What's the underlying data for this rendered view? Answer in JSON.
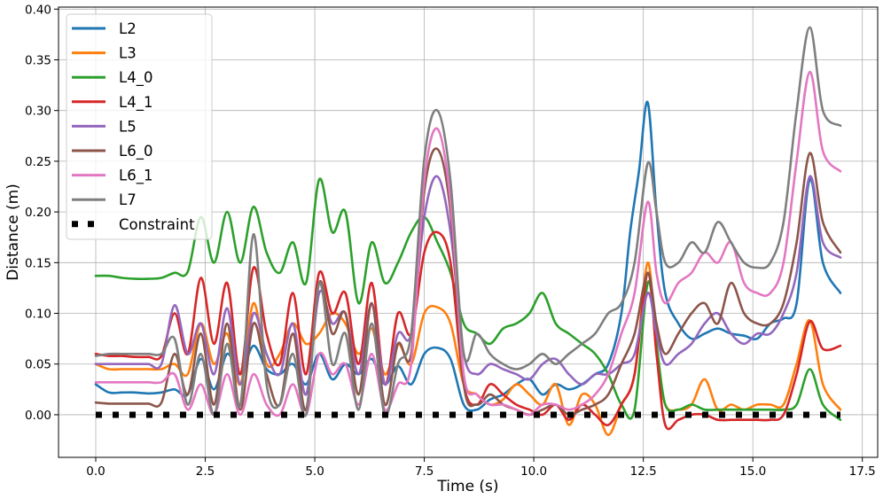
{
  "chart_data": {
    "type": "line",
    "title": "",
    "xlabel": "Time (s)",
    "ylabel": "Distance (m)",
    "xlim": [
      -0.85,
      17.85
    ],
    "ylim": [
      -0.042,
      0.402
    ],
    "xticks": [
      0.0,
      2.5,
      5.0,
      7.5,
      10.0,
      12.5,
      15.0,
      17.5
    ],
    "xtick_labels": [
      "0.0",
      "2.5",
      "5.0",
      "7.5",
      "10.0",
      "12.5",
      "15.0",
      "17.5"
    ],
    "yticks": [
      0.0,
      0.05,
      0.1,
      0.15,
      0.2,
      0.25,
      0.3,
      0.35,
      0.4
    ],
    "ytick_labels": [
      "0.00",
      "0.05",
      "0.10",
      "0.15",
      "0.20",
      "0.25",
      "0.30",
      "0.35",
      "0.40"
    ],
    "grid": true,
    "legend_position": "top-left",
    "series": [
      {
        "name": "L2",
        "color": "#1f77b4",
        "x": [
          0,
          0.3,
          0.6,
          0.9,
          1.2,
          1.5,
          1.8,
          2.1,
          2.4,
          2.7,
          3.0,
          3.3,
          3.6,
          3.9,
          4.2,
          4.5,
          4.8,
          5.1,
          5.4,
          5.7,
          6.0,
          6.3,
          6.6,
          6.9,
          7.2,
          7.5,
          7.8,
          8.1,
          8.4,
          8.7,
          9.0,
          9.3,
          9.6,
          9.9,
          10.2,
          10.5,
          10.8,
          11.1,
          11.4,
          11.7,
          12.0,
          12.2,
          12.4,
          12.6,
          12.8,
          13.0,
          13.3,
          13.6,
          13.9,
          14.2,
          14.5,
          14.8,
          15.1,
          15.4,
          15.7,
          16.0,
          16.3,
          16.6,
          17.0
        ],
        "y": [
          0.03,
          0.022,
          0.022,
          0.022,
          0.021,
          0.022,
          0.025,
          0.02,
          0.055,
          0.025,
          0.06,
          0.04,
          0.068,
          0.045,
          0.04,
          0.05,
          0.03,
          0.06,
          0.035,
          0.05,
          0.04,
          0.055,
          0.03,
          0.048,
          0.03,
          0.06,
          0.066,
          0.055,
          0.01,
          0.005,
          0.015,
          0.02,
          0.03,
          0.035,
          0.02,
          0.03,
          0.025,
          0.03,
          0.04,
          0.05,
          0.1,
          0.18,
          0.24,
          0.308,
          0.2,
          0.12,
          0.09,
          0.075,
          0.08,
          0.085,
          0.08,
          0.078,
          0.075,
          0.09,
          0.095,
          0.11,
          0.232,
          0.15,
          0.12
        ]
      },
      {
        "name": "L3",
        "color": "#ff7f0e",
        "x": [
          0,
          0.3,
          0.6,
          0.9,
          1.2,
          1.5,
          1.8,
          2.1,
          2.4,
          2.7,
          3.0,
          3.3,
          3.6,
          3.9,
          4.2,
          4.5,
          4.8,
          5.1,
          5.4,
          5.7,
          6.0,
          6.3,
          6.6,
          6.9,
          7.2,
          7.5,
          7.8,
          8.1,
          8.4,
          8.7,
          9.0,
          9.3,
          9.6,
          9.9,
          10.2,
          10.5,
          10.8,
          11.1,
          11.4,
          11.7,
          12.0,
          12.3,
          12.6,
          12.8,
          13.0,
          13.3,
          13.6,
          13.9,
          14.2,
          14.5,
          14.8,
          15.1,
          15.4,
          15.7,
          16.0,
          16.3,
          16.6,
          17.0
        ],
        "y": [
          0.05,
          0.045,
          0.045,
          0.045,
          0.045,
          0.045,
          0.05,
          0.04,
          0.09,
          0.05,
          0.08,
          0.03,
          0.11,
          0.05,
          0.06,
          0.09,
          0.07,
          0.08,
          0.1,
          0.09,
          0.06,
          0.085,
          0.04,
          0.07,
          0.05,
          0.1,
          0.106,
          0.09,
          0.03,
          0.02,
          0.01,
          0.015,
          0.03,
          0.02,
          0.01,
          0.03,
          -0.01,
          0.02,
          0.01,
          -0.02,
          0.01,
          0.04,
          0.15,
          0.06,
          0.01,
          0.005,
          0.01,
          0.035,
          0.005,
          0.01,
          0.005,
          0.01,
          0.01,
          0.01,
          0.05,
          0.093,
          0.03,
          0.005
        ]
      },
      {
        "name": "L4_0",
        "color": "#2ca02c",
        "x": [
          0,
          0.3,
          0.6,
          0.9,
          1.2,
          1.5,
          1.8,
          2.1,
          2.4,
          2.7,
          3.0,
          3.3,
          3.6,
          3.9,
          4.2,
          4.5,
          4.8,
          5.1,
          5.4,
          5.7,
          6.0,
          6.3,
          6.6,
          6.9,
          7.2,
          7.5,
          7.8,
          8.1,
          8.4,
          8.7,
          9.0,
          9.3,
          9.6,
          9.9,
          10.2,
          10.5,
          10.8,
          11.1,
          11.4,
          11.7,
          12.0,
          12.3,
          12.6,
          12.8,
          13.0,
          13.3,
          13.6,
          13.9,
          14.2,
          14.5,
          14.8,
          15.1,
          15.4,
          15.7,
          16.0,
          16.3,
          16.6,
          17.0
        ],
        "y": [
          0.137,
          0.137,
          0.135,
          0.134,
          0.134,
          0.135,
          0.14,
          0.141,
          0.195,
          0.15,
          0.2,
          0.15,
          0.205,
          0.16,
          0.14,
          0.17,
          0.13,
          0.232,
          0.18,
          0.2,
          0.11,
          0.17,
          0.13,
          0.15,
          0.18,
          0.195,
          0.17,
          0.14,
          0.09,
          0.08,
          0.07,
          0.085,
          0.09,
          0.1,
          0.12,
          0.09,
          0.08,
          0.07,
          0.06,
          0.04,
          0.01,
          0.005,
          0.13,
          0.07,
          0.01,
          0.005,
          0.01,
          0.005,
          0.005,
          0.005,
          0.005,
          0.005,
          0.005,
          0.005,
          0.01,
          0.045,
          0.01,
          -0.005
        ]
      },
      {
        "name": "L4_1",
        "color": "#d62728",
        "x": [
          0,
          0.3,
          0.6,
          0.9,
          1.2,
          1.5,
          1.8,
          2.1,
          2.4,
          2.7,
          3.0,
          3.3,
          3.6,
          3.9,
          4.2,
          4.5,
          4.8,
          5.1,
          5.4,
          5.7,
          6.0,
          6.3,
          6.6,
          6.9,
          7.2,
          7.5,
          7.8,
          8.1,
          8.4,
          8.7,
          9.0,
          9.3,
          9.6,
          9.9,
          10.2,
          10.5,
          10.8,
          11.1,
          11.4,
          11.7,
          12.0,
          12.3,
          12.6,
          12.8,
          13.0,
          13.3,
          13.6,
          13.9,
          14.2,
          14.5,
          14.8,
          15.1,
          15.4,
          15.7,
          16.0,
          16.3,
          16.6,
          17.0
        ],
        "y": [
          0.06,
          0.058,
          0.058,
          0.057,
          0.057,
          0.058,
          0.1,
          0.06,
          0.135,
          0.07,
          0.13,
          0.04,
          0.145,
          0.08,
          0.05,
          0.12,
          0.04,
          0.14,
          0.1,
          0.12,
          0.05,
          0.13,
          0.03,
          0.1,
          0.08,
          0.16,
          0.18,
          0.15,
          0.03,
          0.01,
          0.03,
          0.02,
          0.01,
          0.005,
          0.0,
          0.01,
          -0.005,
          0.01,
          0.0,
          -0.01,
          0.01,
          0.04,
          0.14,
          0.06,
          -0.01,
          -0.005,
          0.0,
          0.0,
          -0.005,
          -0.005,
          -0.005,
          -0.005,
          -0.005,
          0.0,
          0.04,
          0.092,
          0.065,
          0.068
        ]
      },
      {
        "name": "L5",
        "color": "#9467bd",
        "x": [
          0,
          0.3,
          0.6,
          0.9,
          1.2,
          1.5,
          1.8,
          2.1,
          2.4,
          2.7,
          3.0,
          3.3,
          3.6,
          3.9,
          4.2,
          4.5,
          4.8,
          5.1,
          5.4,
          5.7,
          6.0,
          6.3,
          6.6,
          6.9,
          7.2,
          7.5,
          7.8,
          8.1,
          8.4,
          8.7,
          9.0,
          9.3,
          9.6,
          9.9,
          10.2,
          10.5,
          10.8,
          11.1,
          11.4,
          11.7,
          12.0,
          12.3,
          12.6,
          12.8,
          13.0,
          13.3,
          13.6,
          13.9,
          14.2,
          14.5,
          14.8,
          15.1,
          15.4,
          15.7,
          16.0,
          16.3,
          16.6,
          17.0
        ],
        "y": [
          0.05,
          0.05,
          0.05,
          0.05,
          0.05,
          0.05,
          0.108,
          0.06,
          0.09,
          0.04,
          0.105,
          0.03,
          0.1,
          0.06,
          0.04,
          0.09,
          0.02,
          0.12,
          0.09,
          0.1,
          0.04,
          0.11,
          0.03,
          0.08,
          0.08,
          0.195,
          0.235,
          0.18,
          0.06,
          0.04,
          0.05,
          0.045,
          0.04,
          0.035,
          0.05,
          0.055,
          0.04,
          0.03,
          0.04,
          0.04,
          0.05,
          0.06,
          0.12,
          0.08,
          0.05,
          0.06,
          0.07,
          0.09,
          0.1,
          0.08,
          0.07,
          0.08,
          0.08,
          0.1,
          0.14,
          0.235,
          0.17,
          0.155
        ]
      },
      {
        "name": "L6_0",
        "color": "#8c564b",
        "x": [
          0,
          0.3,
          0.6,
          0.9,
          1.2,
          1.5,
          1.8,
          2.1,
          2.4,
          2.7,
          3.0,
          3.3,
          3.6,
          3.9,
          4.2,
          4.5,
          4.8,
          5.1,
          5.4,
          5.7,
          6.0,
          6.3,
          6.6,
          6.9,
          7.2,
          7.5,
          7.8,
          8.1,
          8.4,
          8.7,
          9.0,
          9.3,
          9.6,
          9.9,
          10.2,
          10.5,
          10.8,
          11.1,
          11.4,
          11.7,
          12.0,
          12.3,
          12.6,
          12.8,
          13.0,
          13.3,
          13.6,
          13.9,
          14.2,
          14.5,
          14.8,
          15.1,
          15.4,
          15.7,
          16.0,
          16.3,
          16.6,
          17.0
        ],
        "y": [
          0.012,
          0.011,
          0.011,
          0.011,
          0.011,
          0.012,
          0.06,
          0.02,
          0.08,
          0.01,
          0.09,
          0.005,
          0.09,
          0.04,
          0.01,
          0.08,
          0.005,
          0.13,
          0.08,
          0.1,
          0.02,
          0.11,
          0.01,
          0.07,
          0.06,
          0.22,
          0.262,
          0.2,
          0.03,
          0.01,
          0.02,
          0.01,
          0.005,
          0.0,
          0.005,
          0.01,
          0.0,
          0.005,
          0.01,
          0.02,
          0.05,
          0.08,
          0.14,
          0.09,
          0.06,
          0.08,
          0.1,
          0.11,
          0.09,
          0.13,
          0.1,
          0.09,
          0.09,
          0.11,
          0.17,
          0.258,
          0.19,
          0.16
        ]
      },
      {
        "name": "L6_1",
        "color": "#e377c2",
        "x": [
          0,
          0.3,
          0.6,
          0.9,
          1.2,
          1.5,
          1.8,
          2.1,
          2.4,
          2.7,
          3.0,
          3.3,
          3.6,
          3.9,
          4.2,
          4.5,
          4.8,
          5.1,
          5.4,
          5.7,
          6.0,
          6.3,
          6.6,
          6.9,
          7.2,
          7.5,
          7.8,
          8.1,
          8.4,
          8.7,
          9.0,
          9.3,
          9.6,
          9.9,
          10.2,
          10.5,
          10.8,
          11.1,
          11.4,
          11.7,
          12.0,
          12.3,
          12.6,
          12.8,
          13.0,
          13.3,
          13.6,
          13.9,
          14.2,
          14.5,
          14.8,
          15.1,
          15.4,
          15.7,
          16.0,
          16.3,
          16.6,
          17.0
        ],
        "y": [
          0.032,
          0.032,
          0.032,
          0.032,
          0.032,
          0.032,
          0.04,
          0.005,
          0.03,
          0.0,
          0.04,
          0.0,
          0.04,
          0.01,
          0.0,
          0.03,
          0.0,
          0.06,
          0.04,
          0.05,
          0.01,
          0.06,
          0.005,
          0.03,
          0.05,
          0.23,
          0.282,
          0.21,
          0.04,
          0.02,
          0.01,
          0.01,
          0.005,
          0.0,
          0.01,
          0.01,
          0.005,
          0.01,
          0.02,
          0.04,
          0.08,
          0.12,
          0.21,
          0.14,
          0.11,
          0.13,
          0.14,
          0.16,
          0.15,
          0.17,
          0.13,
          0.12,
          0.12,
          0.15,
          0.25,
          0.338,
          0.26,
          0.24
        ]
      },
      {
        "name": "L7",
        "color": "#7f7f7f",
        "x": [
          0,
          0.3,
          0.6,
          0.9,
          1.2,
          1.5,
          1.8,
          2.1,
          2.4,
          2.7,
          3.0,
          3.3,
          3.6,
          3.9,
          4.2,
          4.5,
          4.8,
          5.1,
          5.4,
          5.7,
          6.0,
          6.3,
          6.6,
          6.9,
          7.2,
          7.5,
          7.8,
          8.1,
          8.4,
          8.7,
          9.0,
          9.3,
          9.6,
          9.9,
          10.2,
          10.5,
          10.8,
          11.1,
          11.4,
          11.7,
          12.0,
          12.3,
          12.6,
          12.8,
          13.0,
          13.3,
          13.6,
          13.9,
          14.2,
          14.5,
          14.8,
          15.1,
          15.4,
          15.7,
          16.0,
          16.3,
          16.6,
          17.0
        ],
        "y": [
          0.058,
          0.06,
          0.06,
          0.06,
          0.06,
          0.06,
          0.075,
          0.01,
          0.06,
          0.0,
          0.07,
          0.01,
          0.178,
          0.03,
          0.01,
          0.06,
          0.0,
          0.13,
          0.05,
          0.08,
          0.005,
          0.09,
          0.0,
          0.05,
          0.08,
          0.252,
          0.3,
          0.23,
          0.06,
          0.08,
          0.06,
          0.05,
          0.045,
          0.05,
          0.06,
          0.05,
          0.06,
          0.07,
          0.08,
          0.1,
          0.11,
          0.15,
          0.248,
          0.2,
          0.15,
          0.15,
          0.17,
          0.16,
          0.19,
          0.17,
          0.15,
          0.145,
          0.15,
          0.19,
          0.3,
          0.382,
          0.3,
          0.285
        ]
      },
      {
        "name": "Constraint",
        "color": "#000000",
        "style": "dotted",
        "x": [
          0,
          17
        ],
        "y": [
          0.0,
          0.0
        ]
      }
    ]
  }
}
